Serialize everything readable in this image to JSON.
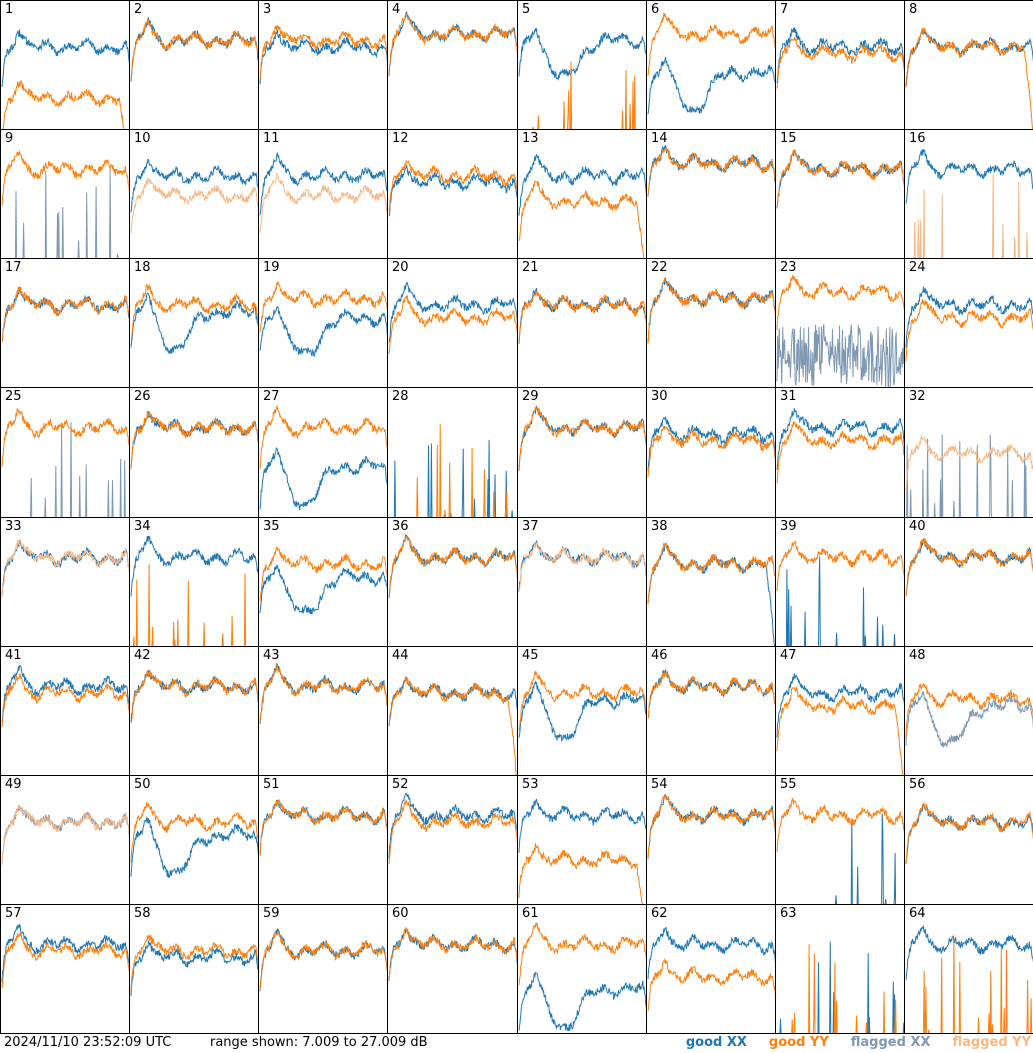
{
  "footer": {
    "timestamp": "2024/11/10 23:52:09 UTC",
    "range": "range shown: 7.009 to 27.009 dB"
  },
  "legend": [
    {
      "kind": "good",
      "pol": "XX",
      "color": "#1f77b4"
    },
    {
      "kind": "good",
      "pol": "YY",
      "color": "#ff7f0e"
    },
    {
      "kind": "flagged",
      "pol": "XX",
      "color": "#7f99b2"
    },
    {
      "kind": "flagged",
      "pol": "YY",
      "color": "#f7b885"
    }
  ],
  "colors": {
    "good_xx": "#1f77b4",
    "good_yy": "#ff7f0e",
    "flagged_xx": "#7f99b2",
    "flagged_yy": "#f7b885"
  },
  "chart_data": {
    "type": "line",
    "grid": {
      "rows": 8,
      "cols": 8
    },
    "ylim": [
      7.009,
      27.009
    ],
    "yunit": "dB",
    "panels": [
      {
        "label": "1",
        "xx": "good",
        "yy": "good",
        "xx_level": 20,
        "yy_level": 12,
        "xx_shape": "normal",
        "yy_shape": "dropoff"
      },
      {
        "label": "2",
        "xx": "good",
        "yy": "good",
        "xx_level": 21,
        "yy_level": 21,
        "xx_shape": "normal",
        "yy_shape": "normal"
      },
      {
        "label": "3",
        "xx": "good",
        "yy": "good",
        "xx_level": 20,
        "yy_level": 21,
        "xx_shape": "normal",
        "yy_shape": "normal"
      },
      {
        "label": "4",
        "xx": "good",
        "yy": "good",
        "xx_level": 22,
        "yy_level": 22,
        "xx_shape": "normal",
        "yy_shape": "normal"
      },
      {
        "label": "5",
        "xx": "good",
        "yy": "good",
        "xx_level": 21,
        "yy_level": 7,
        "xx_shape": "dip",
        "yy_shape": "spikes"
      },
      {
        "label": "6",
        "xx": "good",
        "yy": "good",
        "xx_level": 16,
        "yy_level": 22,
        "xx_shape": "dip",
        "yy_shape": "normal"
      },
      {
        "label": "7",
        "xx": "good",
        "yy": "good",
        "xx_level": 20,
        "yy_level": 19,
        "xx_shape": "normal",
        "yy_shape": "normal"
      },
      {
        "label": "8",
        "xx": "good",
        "yy": "good",
        "xx_level": 20,
        "yy_level": 20,
        "xx_shape": "normal",
        "yy_shape": "dropoff"
      },
      {
        "label": "9",
        "xx": "flagged",
        "yy": "good",
        "xx_level": 7,
        "yy_level": 21,
        "xx_shape": "spikes",
        "yy_shape": "normal"
      },
      {
        "label": "10",
        "xx": "good",
        "yy": "flagged",
        "xx_level": 20,
        "yy_level": 17,
        "xx_shape": "normal",
        "yy_shape": "normal"
      },
      {
        "label": "11",
        "xx": "good",
        "yy": "flagged",
        "xx_level": 20,
        "yy_level": 17,
        "xx_shape": "normal",
        "yy_shape": "normal"
      },
      {
        "label": "12",
        "xx": "good",
        "yy": "good",
        "xx_level": 19,
        "yy_level": 20,
        "xx_shape": "normal",
        "yy_shape": "normal"
      },
      {
        "label": "13",
        "xx": "good",
        "yy": "good",
        "xx_level": 20,
        "yy_level": 16,
        "xx_shape": "normal",
        "yy_shape": "dropoff"
      },
      {
        "label": "14",
        "xx": "good",
        "yy": "good",
        "xx_level": 22,
        "yy_level": 22,
        "xx_shape": "normal",
        "yy_shape": "normal"
      },
      {
        "label": "15",
        "xx": "good",
        "yy": "good",
        "xx_level": 21,
        "yy_level": 21,
        "xx_shape": "normal",
        "yy_shape": "normal"
      },
      {
        "label": "16",
        "xx": "good",
        "yy": "flagged",
        "xx_level": 21,
        "yy_level": 7,
        "xx_shape": "normal",
        "yy_shape": "spikes"
      },
      {
        "label": "17",
        "xx": "good",
        "yy": "good",
        "xx_level": 20,
        "yy_level": 20,
        "xx_shape": "normal",
        "yy_shape": "normal"
      },
      {
        "label": "18",
        "xx": "good",
        "yy": "good",
        "xx_level": 19,
        "yy_level": 20,
        "xx_shape": "dip",
        "yy_shape": "normal"
      },
      {
        "label": "19",
        "xx": "good",
        "yy": "good",
        "xx_level": 18,
        "yy_level": 21,
        "xx_shape": "dip",
        "yy_shape": "normal"
      },
      {
        "label": "20",
        "xx": "good",
        "yy": "good",
        "xx_level": 20,
        "yy_level": 18,
        "xx_shape": "normal",
        "yy_shape": "normal"
      },
      {
        "label": "21",
        "xx": "good",
        "yy": "good",
        "xx_level": 20,
        "yy_level": 20,
        "xx_shape": "normal",
        "yy_shape": "normal"
      },
      {
        "label": "22",
        "xx": "good",
        "yy": "good",
        "xx_level": 21,
        "yy_level": 21,
        "xx_shape": "normal",
        "yy_shape": "normal"
      },
      {
        "label": "23",
        "xx": "flagged",
        "yy": "good",
        "xx_level": 12,
        "yy_level": 22,
        "xx_shape": "noise",
        "yy_shape": "normal"
      },
      {
        "label": "24",
        "xx": "good",
        "yy": "good",
        "xx_level": 20,
        "yy_level": 18,
        "xx_shape": "normal",
        "yy_shape": "normal"
      },
      {
        "label": "25",
        "xx": "flagged",
        "yy": "good",
        "xx_level": 7,
        "yy_level": 21,
        "xx_shape": "spikes",
        "yy_shape": "normal"
      },
      {
        "label": "26",
        "xx": "good",
        "yy": "good",
        "xx_level": 21,
        "yy_level": 21,
        "xx_shape": "normal",
        "yy_shape": "normal"
      },
      {
        "label": "27",
        "xx": "good",
        "yy": "good",
        "xx_level": 15,
        "yy_level": 21,
        "xx_shape": "dip",
        "yy_shape": "normal"
      },
      {
        "label": "28",
        "xx": "good",
        "yy": "good",
        "xx_level": 7,
        "yy_level": 7,
        "xx_shape": "spikes",
        "yy_shape": "spikes"
      },
      {
        "label": "29",
        "xx": "good",
        "yy": "good",
        "xx_level": 21,
        "yy_level": 21,
        "xx_shape": "normal",
        "yy_shape": "normal"
      },
      {
        "label": "30",
        "xx": "good",
        "yy": "good",
        "xx_level": 20,
        "yy_level": 19,
        "xx_shape": "normal",
        "yy_shape": "normal"
      },
      {
        "label": "31",
        "xx": "good",
        "yy": "good",
        "xx_level": 21,
        "yy_level": 19,
        "xx_shape": "normal",
        "yy_shape": "normal"
      },
      {
        "label": "32",
        "xx": "flagged",
        "yy": "flagged",
        "xx_level": 7,
        "yy_level": 17,
        "xx_shape": "spikes",
        "yy_shape": "normal"
      },
      {
        "label": "33",
        "xx": "good",
        "yy": "flagged",
        "xx_level": 21,
        "yy_level": 21,
        "xx_shape": "normal",
        "yy_shape": "normal"
      },
      {
        "label": "34",
        "xx": "good",
        "yy": "good",
        "xx_level": 21,
        "yy_level": 7,
        "xx_shape": "normal",
        "yy_shape": "spikes"
      },
      {
        "label": "35",
        "xx": "good",
        "yy": "good",
        "xx_level": 18,
        "yy_level": 20,
        "xx_shape": "dip",
        "yy_shape": "normal"
      },
      {
        "label": "36",
        "xx": "good",
        "yy": "good",
        "xx_level": 21,
        "yy_level": 21,
        "xx_shape": "normal",
        "yy_shape": "normal"
      },
      {
        "label": "37",
        "xx": "good",
        "yy": "flagged",
        "xx_level": 21,
        "yy_level": 21,
        "xx_shape": "normal",
        "yy_shape": "normal"
      },
      {
        "label": "38",
        "xx": "good",
        "yy": "good",
        "xx_level": 20,
        "yy_level": 20,
        "xx_shape": "dropoff",
        "yy_shape": "normal"
      },
      {
        "label": "39",
        "xx": "good",
        "yy": "good",
        "xx_level": 7,
        "yy_level": 21,
        "xx_shape": "spikes",
        "yy_shape": "normal"
      },
      {
        "label": "40",
        "xx": "good",
        "yy": "good",
        "xx_level": 21,
        "yy_level": 21,
        "xx_shape": "normal",
        "yy_shape": "normal"
      },
      {
        "label": "41",
        "xx": "good",
        "yy": "good",
        "xx_level": 21,
        "yy_level": 20,
        "xx_shape": "normal",
        "yy_shape": "normal"
      },
      {
        "label": "42",
        "xx": "good",
        "yy": "good",
        "xx_level": 21,
        "yy_level": 21,
        "xx_shape": "normal",
        "yy_shape": "normal"
      },
      {
        "label": "43",
        "xx": "good",
        "yy": "good",
        "xx_level": 21,
        "yy_level": 21,
        "xx_shape": "normal",
        "yy_shape": "normal"
      },
      {
        "label": "44",
        "xx": "good",
        "yy": "good",
        "xx_level": 20,
        "yy_level": 20,
        "xx_shape": "normal",
        "yy_shape": "dropoff"
      },
      {
        "label": "45",
        "xx": "good",
        "yy": "good",
        "xx_level": 19,
        "yy_level": 20,
        "xx_shape": "dip",
        "yy_shape": "normal"
      },
      {
        "label": "46",
        "xx": "good",
        "yy": "good",
        "xx_level": 21,
        "yy_level": 21,
        "xx_shape": "normal",
        "yy_shape": "normal"
      },
      {
        "label": "47",
        "xx": "good",
        "yy": "good",
        "xx_level": 20,
        "yy_level": 18,
        "xx_shape": "normal",
        "yy_shape": "dropoff"
      },
      {
        "label": "48",
        "xx": "flagged",
        "yy": "good",
        "xx_level": 18,
        "yy_level": 19,
        "xx_shape": "dip",
        "yy_shape": "normal"
      },
      {
        "label": "49",
        "xx": "flagged",
        "yy": "flagged",
        "xx_level": 20,
        "yy_level": 20,
        "xx_shape": "normal",
        "yy_shape": "normal"
      },
      {
        "label": "50",
        "xx": "good",
        "yy": "good",
        "xx_level": 18,
        "yy_level": 20,
        "xx_shape": "dip",
        "yy_shape": "normal"
      },
      {
        "label": "51",
        "xx": "good",
        "yy": "good",
        "xx_level": 21,
        "yy_level": 21,
        "xx_shape": "normal",
        "yy_shape": "normal"
      },
      {
        "label": "52",
        "xx": "good",
        "yy": "good",
        "xx_level": 21,
        "yy_level": 20,
        "xx_shape": "normal",
        "yy_shape": "normal"
      },
      {
        "label": "53",
        "xx": "good",
        "yy": "good",
        "xx_level": 21,
        "yy_level": 14,
        "xx_shape": "normal",
        "yy_shape": "dropoff"
      },
      {
        "label": "54",
        "xx": "good",
        "yy": "good",
        "xx_level": 21,
        "yy_level": 21,
        "xx_shape": "normal",
        "yy_shape": "normal"
      },
      {
        "label": "55",
        "xx": "good",
        "yy": "good",
        "xx_level": 8,
        "yy_level": 21,
        "xx_shape": "spikes",
        "yy_shape": "normal"
      },
      {
        "label": "56",
        "xx": "good",
        "yy": "good",
        "xx_level": 20,
        "yy_level": 20,
        "xx_shape": "normal",
        "yy_shape": "normal"
      },
      {
        "label": "57",
        "xx": "good",
        "yy": "good",
        "xx_level": 21,
        "yy_level": 20,
        "xx_shape": "normal",
        "yy_shape": "normal"
      },
      {
        "label": "58",
        "xx": "good",
        "yy": "good",
        "xx_level": 19,
        "yy_level": 20,
        "xx_shape": "normal",
        "yy_shape": "normal"
      },
      {
        "label": "59",
        "xx": "good",
        "yy": "good",
        "xx_level": 20,
        "yy_level": 20,
        "xx_shape": "normal",
        "yy_shape": "normal"
      },
      {
        "label": "60",
        "xx": "good",
        "yy": "good",
        "xx_level": 21,
        "yy_level": 21,
        "xx_shape": "normal",
        "yy_shape": "normal"
      },
      {
        "label": "61",
        "xx": "good",
        "yy": "good",
        "xx_level": 14,
        "yy_level": 21,
        "xx_shape": "dip",
        "yy_shape": "normal"
      },
      {
        "label": "62",
        "xx": "good",
        "yy": "good",
        "xx_level": 21,
        "yy_level": 16,
        "xx_shape": "normal",
        "yy_shape": "normal"
      },
      {
        "label": "63",
        "xx": "good",
        "yy": "good",
        "xx_level": 7,
        "yy_level": 7,
        "xx_shape": "spikes",
        "yy_shape": "spikes"
      },
      {
        "label": "64",
        "xx": "good",
        "yy": "good",
        "xx_level": 21,
        "yy_level": 7,
        "xx_shape": "normal",
        "yy_shape": "spikes"
      }
    ]
  }
}
